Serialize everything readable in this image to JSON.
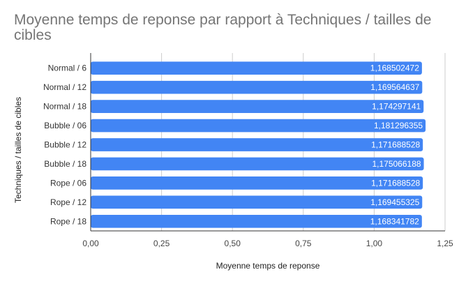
{
  "chart_data": {
    "type": "bar",
    "orientation": "horizontal",
    "title": "Moyenne temps de reponse par rapport à Techniques /  tailles de cibles",
    "xlabel": "Moyenne temps de reponse",
    "ylabel": "Techniques /  tailles de cibles",
    "categories": [
      "Normal / 6",
      "Normal / 12",
      "Normal / 18",
      "Bubble / 06",
      "Bubble / 12",
      "Bubble / 18",
      "Rope / 06",
      "Rope / 12",
      "Rope / 18"
    ],
    "values": [
      1.168502472,
      1.169564637,
      1.174297141,
      1.181296355,
      1.171688528,
      1.175066188,
      1.171688528,
      1.169455325,
      1.168341782
    ],
    "data_labels": [
      "1,168502472",
      "1,169564637",
      "1,174297141",
      "1,181296355",
      "1,171688528",
      "1,175066188",
      "1,171688528",
      "1,169455325",
      "1,168341782"
    ],
    "xlim": [
      0,
      1.25
    ],
    "xticks": [
      "0,00",
      "0,25",
      "0,50",
      "0,75",
      "1,00",
      "1,25"
    ],
    "grid": true,
    "bar_color": "#4285f4"
  }
}
